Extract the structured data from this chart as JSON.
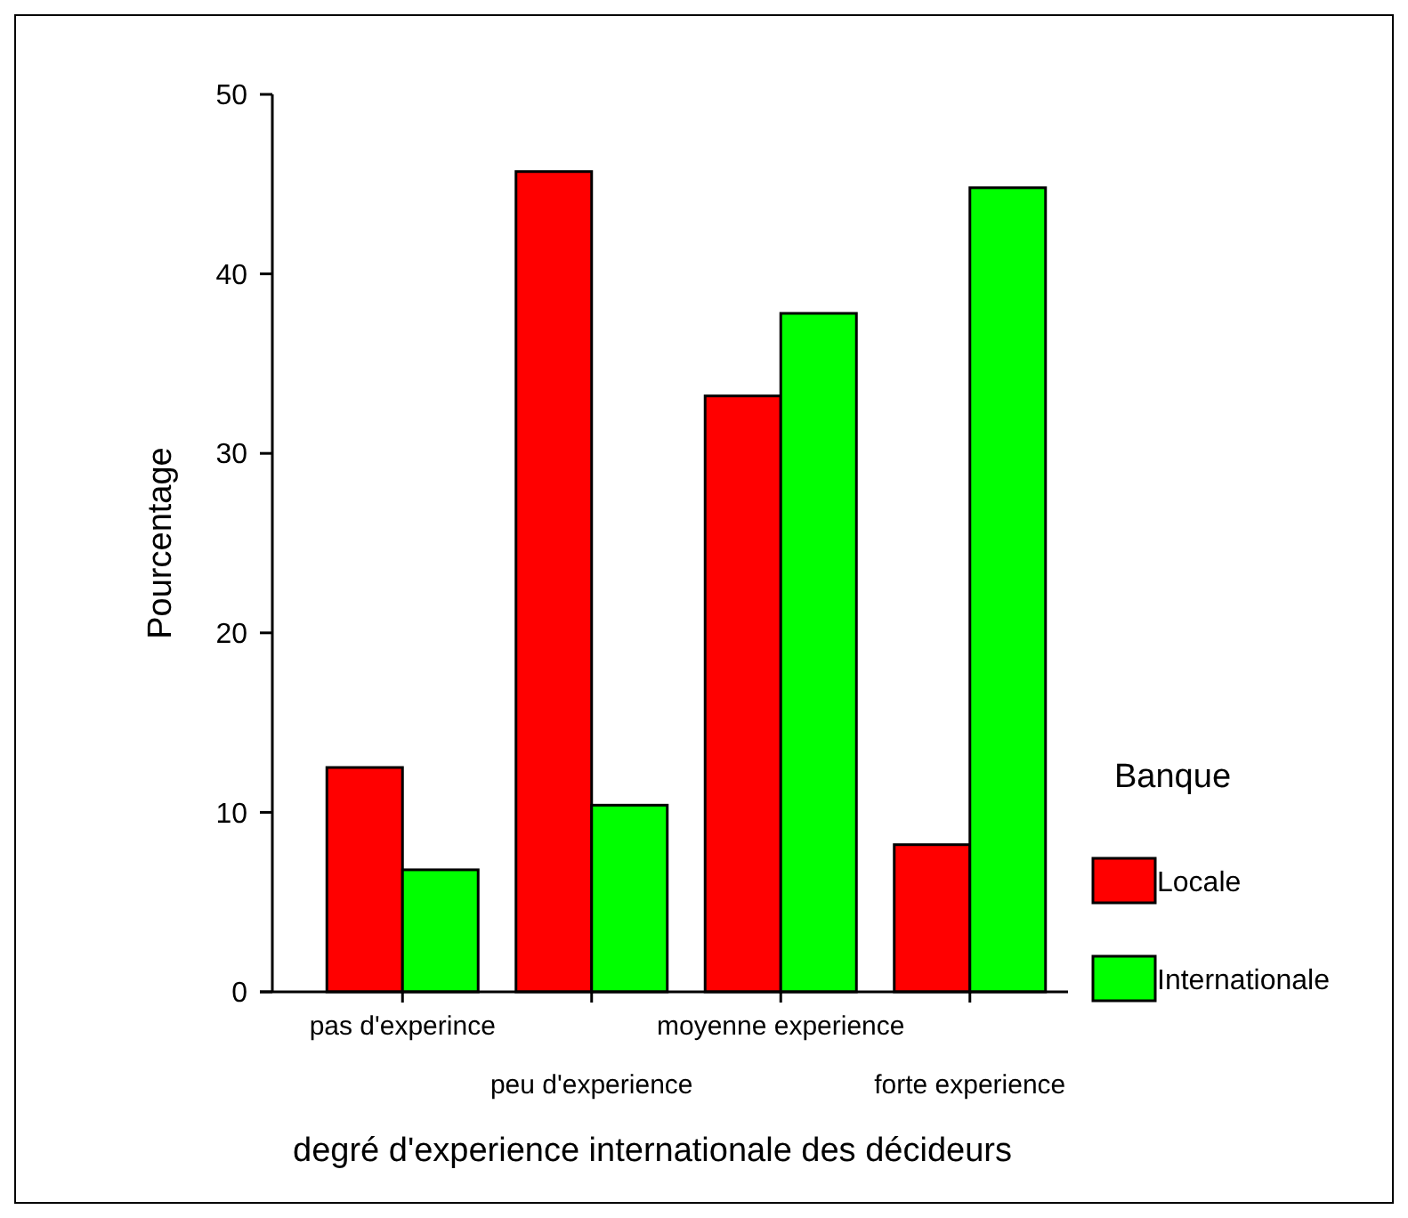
{
  "chart_data": {
    "type": "bar",
    "xlabel": "degré d'experience internationale des décideurs",
    "ylabel": "Pourcentage",
    "legend_title": "Banque",
    "categories": [
      "pas d'experince",
      "peu d'experience",
      "moyenne experience",
      "forte experience"
    ],
    "series": [
      {
        "name": "Locale",
        "color": "#ff0000",
        "values": [
          12.5,
          45.7,
          33.2,
          8.2
        ]
      },
      {
        "name": "Internationale",
        "color": "#00ff00",
        "values": [
          6.8,
          10.4,
          37.8,
          44.8
        ]
      }
    ],
    "ylim": [
      0,
      50
    ],
    "yticks": [
      0,
      10,
      20,
      30,
      40,
      50
    ],
    "grid": false,
    "legend": "right"
  }
}
